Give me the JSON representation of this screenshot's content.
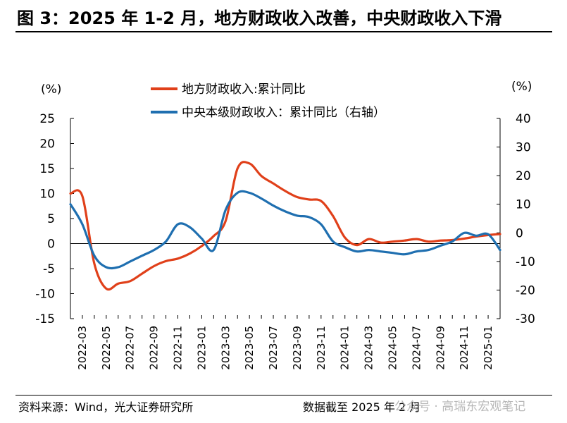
{
  "title": "图 3：2025 年 1-2 月，地方财政收入改善，中央财政收入下滑",
  "source": "资料来源：Wind，光大证券研究所",
  "data_cutoff": "数据截至 2025 年 2 月",
  "watermark": "公众号 · 高瑞东宏观笔记",
  "chart_data": {
    "type": "line",
    "left_unit": "(%)",
    "right_unit": "(%)",
    "left_axis": {
      "ylim": [
        -15,
        25
      ],
      "ticks": [
        25,
        20,
        15,
        10,
        5,
        0,
        -5,
        -10,
        -15
      ]
    },
    "right_axis": {
      "ylim": [
        -30,
        40
      ],
      "ticks": [
        40,
        30,
        20,
        10,
        0,
        -10,
        -20,
        -30
      ]
    },
    "x_tick_labels": [
      "2022-03",
      "2022-05",
      "2022-07",
      "2022-09",
      "2022-11",
      "2023-01",
      "2023-03",
      "2023-05",
      "2023-07",
      "2023-09",
      "2023-11",
      "2024-01",
      "2024-03",
      "2024-05",
      "2024-07",
      "2024-09",
      "2024-11",
      "2025-01"
    ],
    "legend_position": "top-center",
    "grid": false,
    "series": [
      {
        "name": "地方财政收入:累计同比",
        "axis": "left",
        "color": "#e0401a",
        "x": [
          "2022-02",
          "2022-03",
          "2022-04",
          "2022-05",
          "2022-06",
          "2022-07",
          "2022-08",
          "2022-09",
          "2022-10",
          "2022-11",
          "2022-12",
          "2023-01",
          "2023-02",
          "2023-03",
          "2023-04",
          "2023-05",
          "2023-06",
          "2023-07",
          "2023-08",
          "2023-09",
          "2023-10",
          "2023-11",
          "2023-12",
          "2024-01",
          "2024-02",
          "2024-03",
          "2024-04",
          "2024-05",
          "2024-06",
          "2024-07",
          "2024-08",
          "2024-09",
          "2024-10",
          "2024-11",
          "2024-12",
          "2025-01",
          "2025-02"
        ],
        "y": [
          10,
          9.5,
          -4,
          -9,
          -8,
          -7.5,
          -6,
          -4.5,
          -3.5,
          -3,
          -2,
          -0.5,
          1.5,
          4.5,
          15,
          16,
          13.5,
          12,
          10.5,
          9.3,
          8.8,
          8.5,
          5.5,
          1.2,
          -0.3,
          0.9,
          0.2,
          0.4,
          0.6,
          0.9,
          0.4,
          0.6,
          0.7,
          1.0,
          1.4,
          1.7,
          1.9
        ]
      },
      {
        "name": "中央本级财政收入：累计同比（右轴）",
        "axis": "right",
        "color": "#1f6fb0",
        "x": [
          "2022-02",
          "2022-03",
          "2022-04",
          "2022-05",
          "2022-06",
          "2022-07",
          "2022-08",
          "2022-09",
          "2022-10",
          "2022-11",
          "2022-12",
          "2023-01",
          "2023-02",
          "2023-03",
          "2023-04",
          "2023-05",
          "2023-06",
          "2023-07",
          "2023-08",
          "2023-09",
          "2023-10",
          "2023-11",
          "2023-12",
          "2024-01",
          "2024-02",
          "2024-03",
          "2024-04",
          "2024-05",
          "2024-06",
          "2024-07",
          "2024-08",
          "2024-09",
          "2024-10",
          "2024-11",
          "2024-12",
          "2025-01",
          "2025-02"
        ],
        "y": [
          10,
          3,
          -8,
          -12,
          -12,
          -10,
          -8,
          -6,
          -3,
          3,
          2,
          -2,
          -6,
          8,
          14,
          14,
          12,
          9.5,
          7.5,
          6,
          5.5,
          3,
          -3,
          -5,
          -6.5,
          -6,
          -6.5,
          -7,
          -7.5,
          -6.5,
          -6,
          -4.5,
          -3,
          0,
          -1,
          -0.5,
          -6
        ]
      }
    ]
  }
}
